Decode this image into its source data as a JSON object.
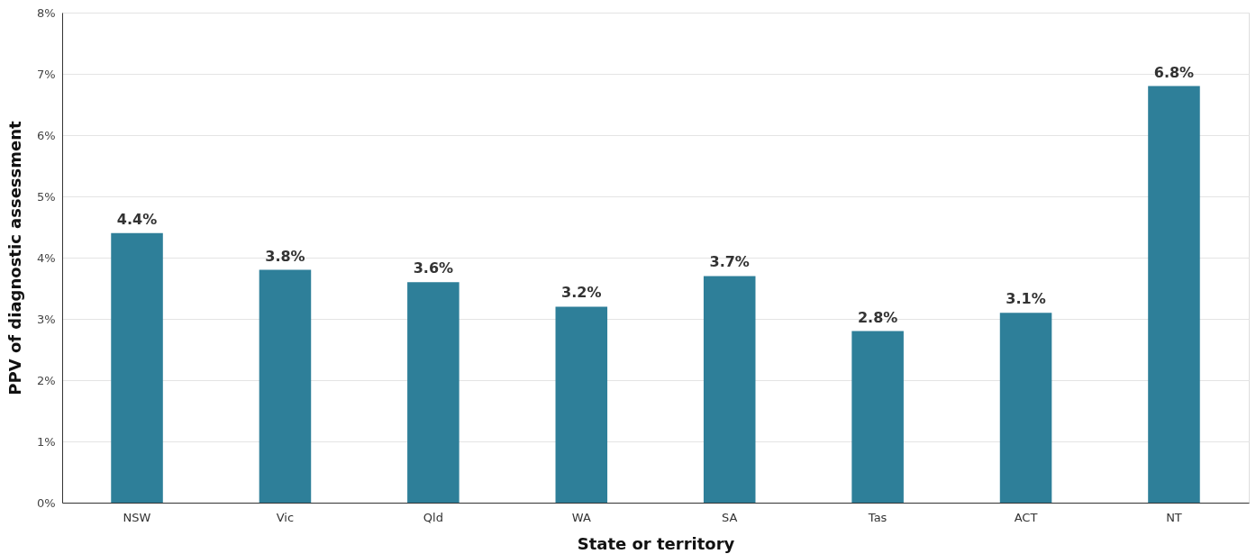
{
  "chart_data": {
    "type": "bar",
    "xlabel": "State or territory",
    "ylabel": "PPV of diagnostic assessment",
    "categories": [
      "NSW",
      "Vic",
      "Qld",
      "WA",
      "SA",
      "Tas",
      "ACT",
      "NT"
    ],
    "values": [
      4.4,
      3.8,
      3.6,
      3.2,
      3.7,
      2.8,
      3.1,
      6.8
    ],
    "value_labels": [
      "4.4%",
      "3.8%",
      "3.6%",
      "3.2%",
      "3.7%",
      "2.8%",
      "3.1%",
      "6.8%"
    ],
    "color": "#2e7f99",
    "ylim": [
      0,
      8
    ],
    "yticks": [
      {
        "value": 0,
        "label": "0%"
      },
      {
        "value": 1,
        "label": "1%"
      },
      {
        "value": 2,
        "label": "2%"
      },
      {
        "value": 3,
        "label": "3%"
      },
      {
        "value": 4,
        "label": "4%"
      },
      {
        "value": 5,
        "label": "5%"
      },
      {
        "value": 6,
        "label": "6%"
      },
      {
        "value": 7,
        "label": "7%"
      },
      {
        "value": 8,
        "label": "8%"
      }
    ],
    "grid": "y"
  }
}
